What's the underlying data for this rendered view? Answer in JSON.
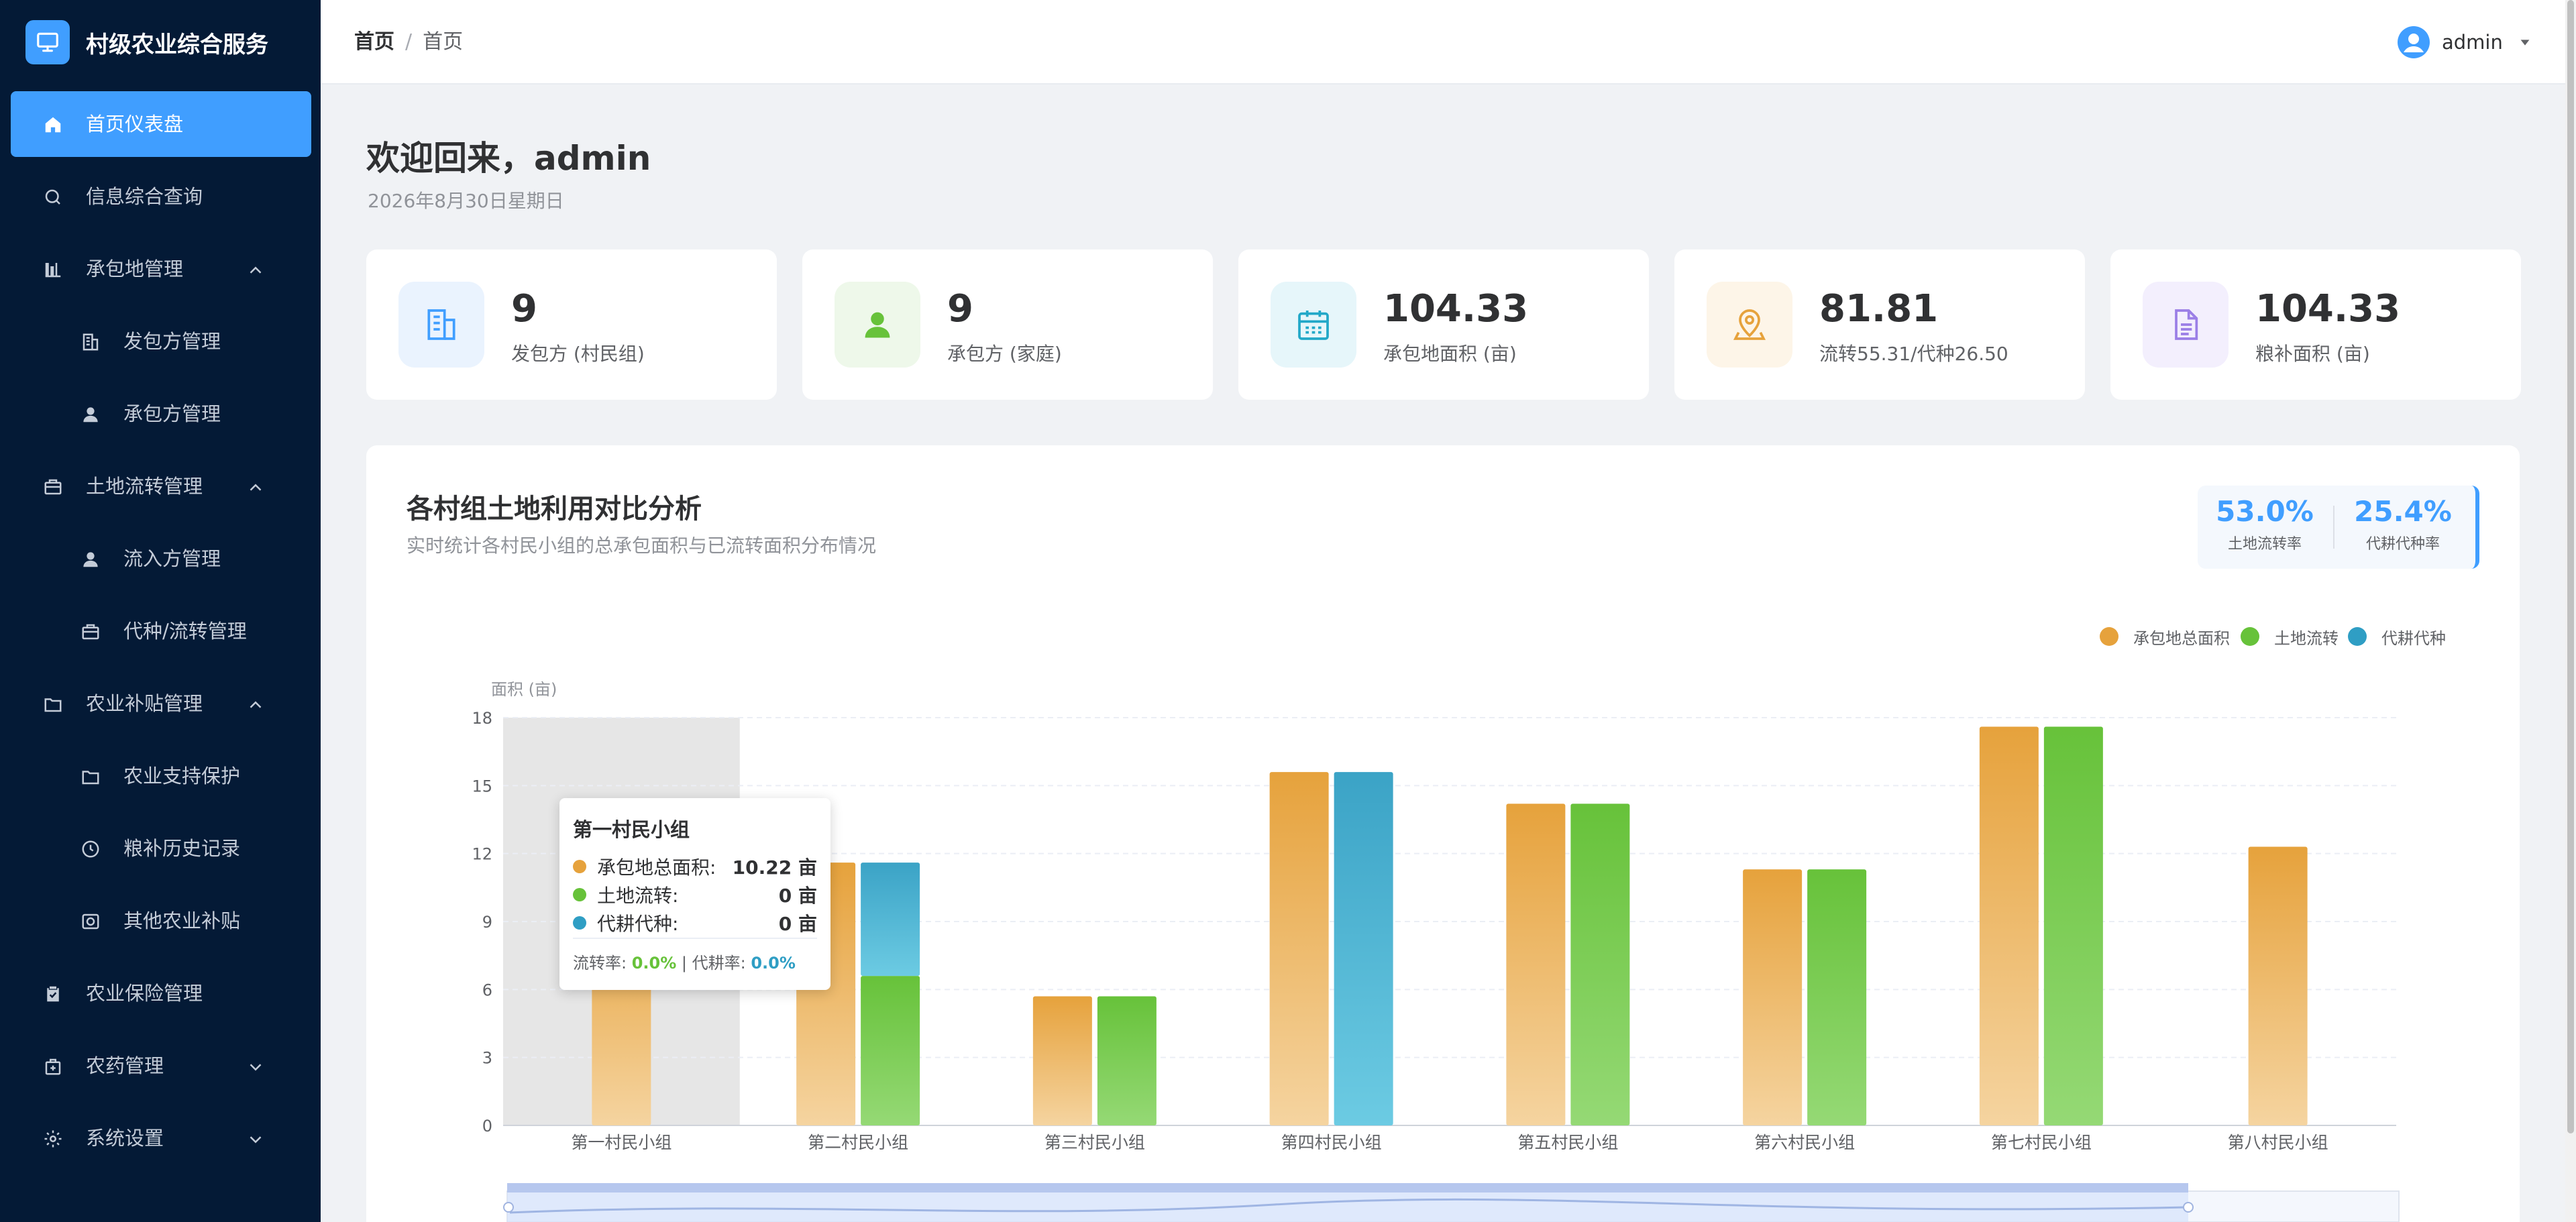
{
  "app": {
    "title": "村级农业综合服务"
  },
  "sidebar": {
    "items": [
      {
        "label": "首页仪表盘",
        "icon": "home-icon",
        "active": true
      },
      {
        "label": "信息综合查询",
        "icon": "search-icon"
      },
      {
        "label": "承包地管理",
        "icon": "chart-icon",
        "expanded": true
      },
      {
        "label": "发包方管理",
        "icon": "building-icon",
        "sub": true
      },
      {
        "label": "承包方管理",
        "icon": "user-icon",
        "sub": true
      },
      {
        "label": "土地流转管理",
        "icon": "briefcase-icon",
        "expanded": true
      },
      {
        "label": "流入方管理",
        "icon": "user-icon",
        "sub": true
      },
      {
        "label": "代种/流转管理",
        "icon": "briefcase-icon",
        "sub": true
      },
      {
        "label": "农业补贴管理",
        "icon": "folder-icon",
        "expanded": true
      },
      {
        "label": "农业支持保护",
        "icon": "folder-icon",
        "sub": true
      },
      {
        "label": "粮补历史记录",
        "icon": "clock-icon",
        "sub": true
      },
      {
        "label": "其他农业补贴",
        "icon": "coin-icon",
        "sub": true
      },
      {
        "label": "农业保险管理",
        "icon": "clipboard-check-icon"
      },
      {
        "label": "农药管理",
        "icon": "bag-icon",
        "expanded": false
      },
      {
        "label": "系统设置",
        "icon": "gear-icon",
        "expanded": false
      }
    ]
  },
  "header": {
    "breadcrumb": [
      "首页",
      "首页"
    ],
    "separator": "/",
    "user": "admin"
  },
  "welcome": {
    "title": "欢迎回来，admin",
    "date": "2026年8月30日星期日"
  },
  "stats": [
    {
      "value": "9",
      "label": "发包方 (村民组)",
      "icon": "building-icon",
      "color": "#409eff",
      "bg": "#eaf3fe"
    },
    {
      "value": "9",
      "label": "承包方 (家庭)",
      "icon": "user-icon",
      "color": "#67c23a",
      "bg": "#eef8ea"
    },
    {
      "value": "104.33",
      "label": "承包地面积 (亩)",
      "icon": "calendar-icon",
      "color": "#22a8c8",
      "bg": "#e6f6fa"
    },
    {
      "value": "81.81",
      "label": "流转55.31/代种26.50",
      "icon": "map-pin-icon",
      "color": "#e6a23c",
      "bg": "#fdf5e8"
    },
    {
      "value": "104.33",
      "label": "粮补面积 (亩)",
      "icon": "document-icon",
      "color": "#9b7fe6",
      "bg": "#f3effd"
    }
  ],
  "chart_section": {
    "title": "各村组土地利用对比分析",
    "subtitle": "实时统计各村民小组的总承包面积与已流转面积分布情况",
    "rates": [
      {
        "value": "53.0%",
        "label": "土地流转率"
      },
      {
        "value": "25.4%",
        "label": "代耕代种率"
      }
    ]
  },
  "chart_data": {
    "type": "bar",
    "ylabel": "面积 (亩)",
    "ylim": [
      0,
      18
    ],
    "yticks": [
      0,
      3,
      6,
      9,
      12,
      15,
      18
    ],
    "grid": true,
    "legend_position": "top-right",
    "categories": [
      "第一村民小组",
      "第二村民小组",
      "第三村民小组",
      "第四村民小组",
      "第五村民小组",
      "第六村民小组",
      "第七村民小组",
      "第八村民小组"
    ],
    "series": [
      {
        "name": "承包地总面积",
        "color": "#e6a23c",
        "values": [
          10.22,
          11.6,
          5.7,
          15.6,
          14.2,
          11.3,
          17.6,
          12.3
        ]
      },
      {
        "name": "土地流转",
        "color": "#67c23a",
        "values": [
          0,
          6.6,
          5.7,
          0,
          14.2,
          11.3,
          17.6,
          0
        ],
        "stack": "used"
      },
      {
        "name": "代耕代种",
        "color": "#2f9ec4",
        "values": [
          0,
          5.0,
          0,
          15.6,
          0,
          0,
          0,
          0
        ],
        "stack": "used"
      }
    ],
    "highlight_index": 0
  },
  "tooltip": {
    "title": "第一村民小组",
    "rows": [
      {
        "name": "承包地总面积:",
        "value": "10.22 亩",
        "color": "#e6a23c"
      },
      {
        "name": "土地流转:",
        "value": "0 亩",
        "color": "#67c23a"
      },
      {
        "name": "代耕代种:",
        "value": "0 亩",
        "color": "#2f9ec4"
      }
    ],
    "footer_rate1_label": "流转率: ",
    "footer_rate1_value": "0.0%",
    "footer_divider": " | ",
    "footer_rate2_label": "代耕率: ",
    "footer_rate2_value": "0.0%"
  }
}
